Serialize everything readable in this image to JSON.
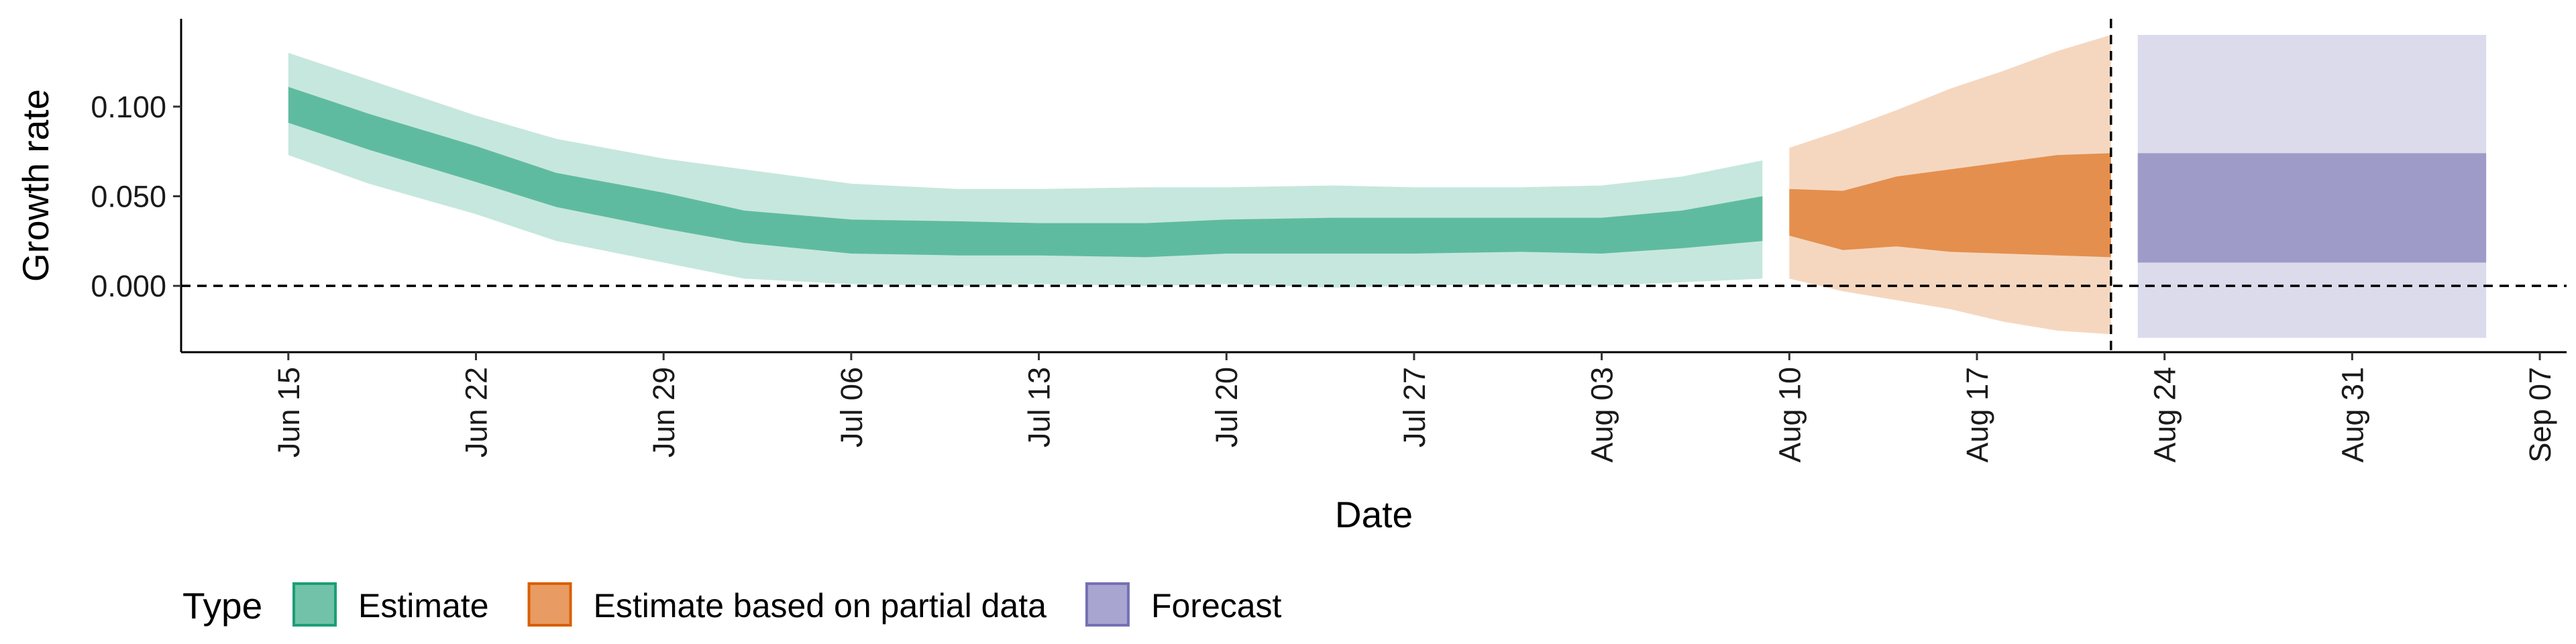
{
  "chart_data": {
    "type": "area",
    "xlabel": "Date",
    "ylabel": "Growth rate",
    "x_range": [
      "2020-06-11",
      "2020-09-08"
    ],
    "ylim": [
      -0.037,
      0.149
    ],
    "y_ticks": [
      0.0,
      0.05,
      0.1
    ],
    "y_tick_labels": [
      "0.000",
      "0.050",
      "0.100"
    ],
    "x_ticks": [
      "2020-06-15",
      "2020-06-22",
      "2020-06-29",
      "2020-07-06",
      "2020-07-13",
      "2020-07-20",
      "2020-07-27",
      "2020-08-03",
      "2020-08-10",
      "2020-08-17",
      "2020-08-24",
      "2020-08-31",
      "2020-09-07"
    ],
    "x_tick_labels": [
      "Jun 15",
      "Jun 22",
      "Jun 29",
      "Jul 06",
      "Jul 13",
      "Jul 20",
      "Jul 27",
      "Aug 03",
      "Aug 10",
      "Aug 17",
      "Aug 24",
      "Aug 31",
      "Sep 07"
    ],
    "reference_lines": [
      {
        "axis": "y",
        "value": 0,
        "style": "dashed"
      },
      {
        "axis": "x",
        "value": "2020-08-22",
        "style": "dashed"
      }
    ],
    "legend": {
      "title": "Type",
      "position": "bottom-left",
      "items": [
        {
          "label": "Estimate",
          "fill": "#71c2a8",
          "border": "#1b9e77"
        },
        {
          "label": "Estimate based on partial data",
          "fill": "#e89b62",
          "border": "#d95f02"
        },
        {
          "label": "Forecast",
          "fill": "#a8a6d1",
          "border": "#7570b3"
        }
      ]
    },
    "series": [
      {
        "name": "Estimate",
        "color": "#1b9e77",
        "outer_opacity": 0.25,
        "inner_opacity": 0.6,
        "x": [
          "2020-06-15",
          "2020-06-18",
          "2020-06-22",
          "2020-06-25",
          "2020-06-29",
          "2020-07-02",
          "2020-07-06",
          "2020-07-10",
          "2020-07-13",
          "2020-07-17",
          "2020-07-20",
          "2020-07-24",
          "2020-07-27",
          "2020-07-31",
          "2020-08-03",
          "2020-08-06",
          "2020-08-09"
        ],
        "lower90": [
          0.073,
          0.057,
          0.04,
          0.025,
          0.013,
          0.004,
          0.001,
          0.0,
          0.001,
          0.0,
          0.001,
          -0.001,
          0.0,
          0.001,
          0.0,
          0.002,
          0.004
        ],
        "upper90": [
          0.13,
          0.115,
          0.095,
          0.082,
          0.071,
          0.065,
          0.057,
          0.054,
          0.054,
          0.055,
          0.055,
          0.056,
          0.055,
          0.055,
          0.056,
          0.061,
          0.07
        ],
        "lower50": [
          0.091,
          0.076,
          0.058,
          0.044,
          0.032,
          0.024,
          0.018,
          0.017,
          0.017,
          0.016,
          0.018,
          0.018,
          0.018,
          0.019,
          0.018,
          0.021,
          0.025
        ],
        "upper50": [
          0.111,
          0.096,
          0.078,
          0.063,
          0.052,
          0.042,
          0.037,
          0.036,
          0.035,
          0.035,
          0.037,
          0.038,
          0.038,
          0.038,
          0.038,
          0.042,
          0.05
        ]
      },
      {
        "name": "Estimate based on partial data",
        "color": "#d95f02",
        "outer_opacity": 0.25,
        "inner_opacity": 0.6,
        "x": [
          "2020-08-10",
          "2020-08-12",
          "2020-08-14",
          "2020-08-16",
          "2020-08-18",
          "2020-08-20",
          "2020-08-22"
        ],
        "lower90": [
          0.004,
          -0.003,
          -0.008,
          -0.013,
          -0.02,
          -0.025,
          -0.027
        ],
        "upper90": [
          0.077,
          0.087,
          0.098,
          0.11,
          0.12,
          0.131,
          0.14
        ],
        "lower50": [
          0.028,
          0.02,
          0.022,
          0.019,
          0.018,
          0.017,
          0.016
        ],
        "upper50": [
          0.054,
          0.053,
          0.061,
          0.065,
          0.069,
          0.073,
          0.074
        ]
      },
      {
        "name": "Forecast",
        "color": "#7570b3",
        "outer_opacity": 0.25,
        "inner_opacity": 0.6,
        "x": [
          "2020-08-23",
          "2020-09-05"
        ],
        "lower90": [
          -0.029,
          -0.029
        ],
        "upper90": [
          0.14,
          0.14
        ],
        "lower50": [
          0.013,
          0.013
        ],
        "upper50": [
          0.074,
          0.074
        ]
      }
    ]
  }
}
